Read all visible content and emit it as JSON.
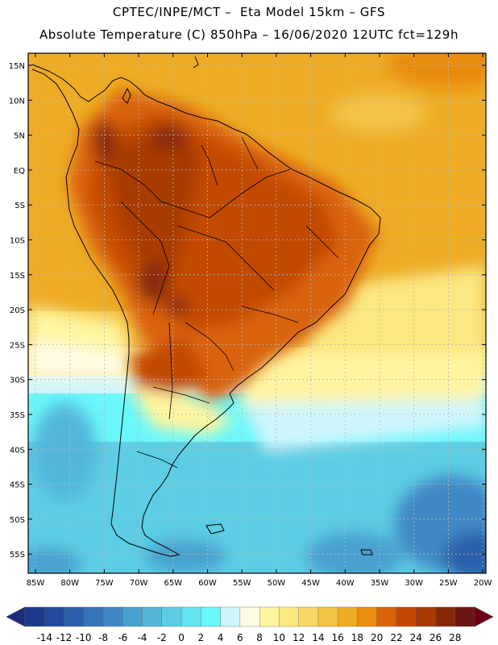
{
  "header": {
    "line1": "CPTEC/INPE/MCT –  Eta Model 15km – GFS",
    "line2": "Absolute Temperature (C) 850hPa – 16/06/2020 12UTC fct=129h"
  },
  "map": {
    "lat_labels": [
      "15N",
      "10N",
      "5N",
      "EQ",
      "5S",
      "10S",
      "15S",
      "20S",
      "25S",
      "30S",
      "35S",
      "40S",
      "45S",
      "50S",
      "55S"
    ],
    "lon_labels": [
      "85W",
      "80W",
      "75W",
      "70W",
      "65W",
      "60W",
      "55W",
      "50W",
      "45W",
      "40W",
      "35W",
      "30W",
      "25W",
      "20W"
    ]
  },
  "colorbar": {
    "labels": [
      "-14",
      "-12",
      "-10",
      "-8",
      "-6",
      "-4",
      "-2",
      "0",
      "2",
      "4",
      "6",
      "8",
      "10",
      "12",
      "14",
      "16",
      "18",
      "20",
      "22",
      "24",
      "26",
      "28"
    ],
    "colors": [
      "#1b3a8c",
      "#234a9c",
      "#2c5eab",
      "#3673b8",
      "#3f88c4",
      "#49a0cf",
      "#53b6d9",
      "#5ccde3",
      "#62e4ee",
      "#6af7fb",
      "#cff5fb",
      "#fffbe4",
      "#fff5a0",
      "#fbe882",
      "#f8d766",
      "#f3c346",
      "#eeac24",
      "#e98c10",
      "#d9620a",
      "#c24a06",
      "#a73a06",
      "#862a0a",
      "#6e1412"
    ],
    "low_arrow_color": "#1b2c7c",
    "high_arrow_color": "#6e0016"
  }
}
